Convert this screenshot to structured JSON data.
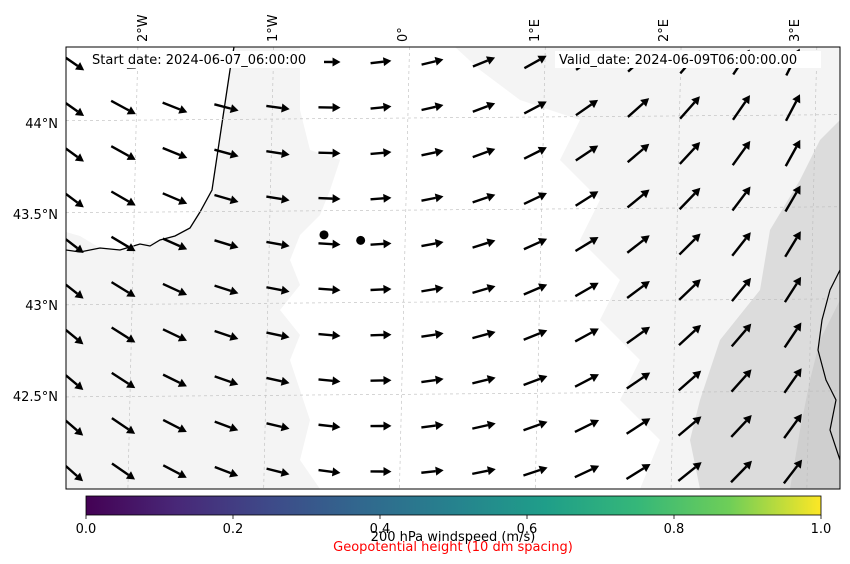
{
  "header": {
    "start_date": "Start date: 2024-06-07_06:00:00",
    "valid_date": "Valid_date: 2024-06-09T06:00:00.00"
  },
  "axes": {
    "lon_labels": [
      "2°W",
      "1°W",
      "0°",
      "1°E",
      "2°E",
      "3°E"
    ],
    "lat_labels": [
      "44°N",
      "43.5°N",
      "43°N",
      "42.5°N"
    ]
  },
  "colorbar": {
    "colormap": "viridis",
    "range": [
      0.0,
      1.0
    ],
    "tick_labels": [
      "0.0",
      "0.2",
      "0.4",
      "0.6",
      "0.8",
      "1.0"
    ],
    "label": "200 hPa windspeed (m/s)",
    "sublabel": "Geopotential height (10 dm spacing)",
    "sublabel_color": "#ff0000"
  },
  "colors": {
    "land": "#f4f4f4",
    "terrain_high": "#dcdcdc",
    "coastline": "#000000",
    "arrows": "#000000",
    "gridlines": "#bbbbbb"
  },
  "map": {
    "lon_range": [
      -2.5,
      3.2
    ],
    "lat_range": [
      42.0,
      44.4
    ],
    "markers": [
      {
        "name": "marker-1",
        "lon": -0.6,
        "lat": 43.38
      },
      {
        "name": "marker-2",
        "lon": -0.33,
        "lat": 43.35
      }
    ]
  }
}
